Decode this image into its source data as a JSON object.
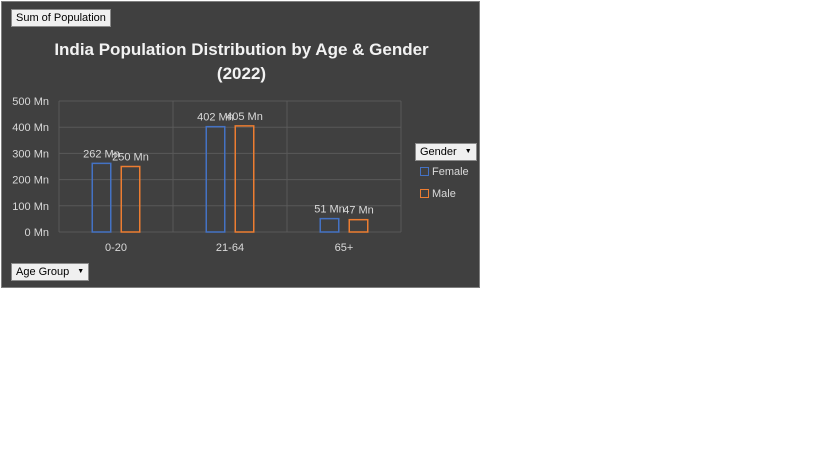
{
  "pivot": {
    "value_field": "Sum of Population",
    "axis_field": "Age Group",
    "legend_field": "Gender"
  },
  "colors": {
    "background": "#404040",
    "female": "#4472c4",
    "male": "#ed7d31",
    "grid": "#595959",
    "text": "#d9d9d9"
  },
  "chart_data": {
    "type": "bar",
    "title_lines": [
      "India Population Distribution by Age & Gender",
      "(2022)"
    ],
    "categories": [
      "0-20",
      "21-64",
      "65+"
    ],
    "series": [
      {
        "name": "Female",
        "values": [
          262,
          402,
          51
        ],
        "labels": [
          "262 Mn",
          "402 Mn",
          "51 Mn"
        ]
      },
      {
        "name": "Male",
        "values": [
          250,
          405,
          47
        ],
        "labels": [
          "250 Mn",
          "405 Mn",
          "47 Mn"
        ]
      }
    ],
    "y_ticks": [
      "0 Mn",
      "100 Mn",
      "200 Mn",
      "300 Mn",
      "400 Mn",
      "500 Mn"
    ],
    "ylim": [
      0,
      500
    ],
    "grid": true,
    "legend_position": "right"
  }
}
